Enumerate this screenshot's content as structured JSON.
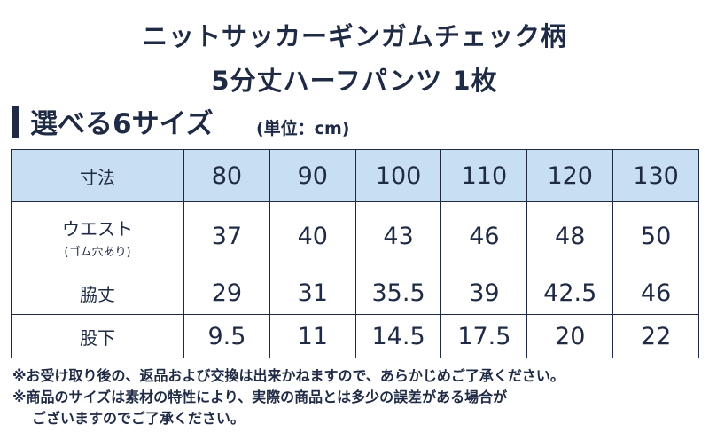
{
  "title": {
    "line1": "ニットサッカーギンガムチェック柄",
    "line2": "5分丈ハーフパンツ 1枚"
  },
  "heading": "選べる6サイズ",
  "unit": "(単位：cm)",
  "table": {
    "header_item": "寸法",
    "sizes": [
      "80",
      "90",
      "100",
      "110",
      "120",
      "130"
    ],
    "rows": [
      {
        "label": "ウエスト",
        "sublabel": "(ゴム穴あり)",
        "values": [
          "37",
          "40",
          "43",
          "46",
          "48",
          "50"
        ]
      },
      {
        "label": "脇丈",
        "sublabel": "",
        "values": [
          "29",
          "31",
          "35.5",
          "39",
          "42.5",
          "46"
        ]
      },
      {
        "label": "股下",
        "sublabel": "",
        "values": [
          "9.5",
          "11",
          "14.5",
          "17.5",
          "20",
          "22"
        ]
      }
    ]
  },
  "notes": {
    "note1": "※お受け取り後の、返品および交換は出来かねますので、あらかじめご了承ください。",
    "note2": "※商品のサイズは素材の特性により、実際の商品とは多少の誤差がある場合が",
    "note2_cont": "ございますのでご了承ください。"
  },
  "colors": {
    "navy": "#1f2a44",
    "header_bg": "#c8dff1"
  }
}
